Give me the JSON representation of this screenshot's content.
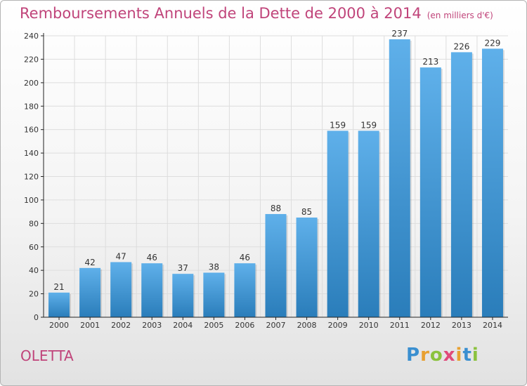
{
  "chart_data": {
    "type": "bar",
    "title": "Remboursements Annuels de la Dette de 2000 à 2014",
    "subtitle": "(en milliers d'€)",
    "categories": [
      "2000",
      "2001",
      "2002",
      "2003",
      "2004",
      "2005",
      "2006",
      "2007",
      "2008",
      "2009",
      "2010",
      "2011",
      "2012",
      "2013",
      "2014"
    ],
    "values": [
      21,
      42,
      47,
      46,
      37,
      38,
      46,
      88,
      85,
      159,
      159,
      237,
      213,
      226,
      229
    ],
    "ylim": [
      0,
      240
    ],
    "yticks": [
      0,
      20,
      40,
      60,
      80,
      100,
      120,
      140,
      160,
      180,
      200,
      220,
      240
    ],
    "grid": true,
    "xlabel": "",
    "ylabel": ""
  },
  "place": "OLETTA",
  "logo": {
    "letters": [
      "P",
      "r",
      "o",
      "x",
      "i",
      "t",
      "i"
    ],
    "colors": [
      "#3a8fd0",
      "#e8a030",
      "#8bc23e",
      "#e04a7a",
      "#e8a030",
      "#3a8fd0",
      "#8bc23e"
    ]
  },
  "colors": {
    "title": "#c0447a",
    "bar_top": "#5fb0ea",
    "bar_bottom": "#2a7dba",
    "grid": "#dddddd",
    "axis": "#222222"
  }
}
